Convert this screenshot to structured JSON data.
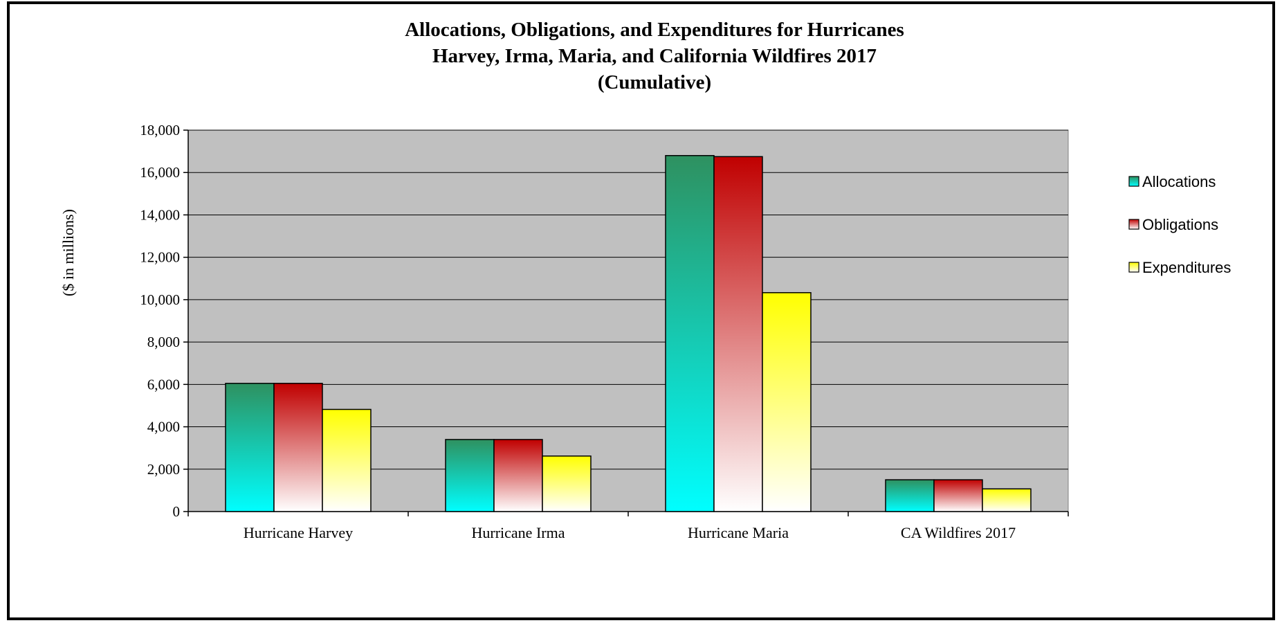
{
  "chart_data": {
    "type": "bar",
    "title": [
      "Allocations, Obligations, and Expenditures for Hurricanes",
      "Harvey, Irma, Maria, and California Wildfires 2017",
      "(Cumulative)"
    ],
    "ylabel": "($ in millions)",
    "xlabel": "",
    "ylim": [
      0,
      18000
    ],
    "ytick_step": 2000,
    "ytick_labels": [
      "0",
      "2,000",
      "4,000",
      "6,000",
      "8,000",
      "10,000",
      "12,000",
      "14,000",
      "16,000",
      "18,000"
    ],
    "categories": [
      "Hurricane Harvey",
      "Hurricane Irma",
      "Hurricane Maria",
      "CA Wildfires 2017"
    ],
    "series": [
      {
        "name": "Allocations",
        "values": [
          6050,
          3400,
          16800,
          1500
        ]
      },
      {
        "name": "Obligations",
        "values": [
          6050,
          3400,
          16750,
          1500
        ]
      },
      {
        "name": "Expenditures",
        "values": [
          4820,
          2620,
          10330,
          1070
        ]
      }
    ],
    "grid": true,
    "legend": "right",
    "plot_background": "#c0c0c0",
    "series_colors": [
      {
        "top": "#2e9160",
        "bottom": "#00ffff"
      },
      {
        "top": "#c00000",
        "bottom": "#ffffff"
      },
      {
        "top": "#ffff00",
        "bottom": "#ffffff"
      }
    ]
  }
}
